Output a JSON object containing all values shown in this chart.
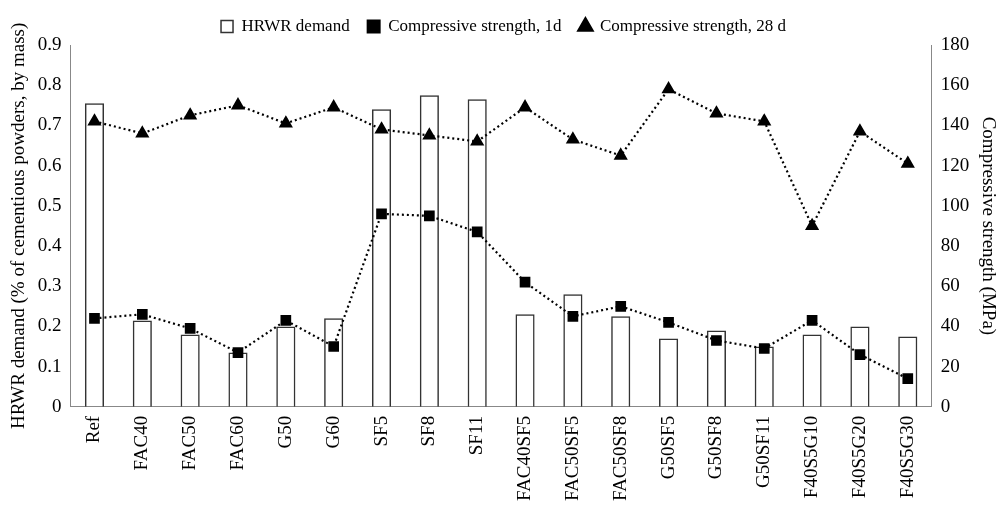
{
  "chart_data": {
    "type": "bar",
    "ylabel": "HRWR demand (% of cementious powders, by mass)",
    "y2label": "Compressive strength (MPa)",
    "categories": [
      "Ref",
      "FAC40",
      "FAC50",
      "FAC60",
      "G50",
      "G60",
      "SF5",
      "SF8",
      "SF11",
      "FAC40SF5",
      "FAC50SF5",
      "FAC50SF8",
      "G50SF5",
      "G50SF8",
      "G50SF11",
      "F40S5G10",
      "F40S5G20",
      "F40S5G30"
    ],
    "series": [
      {
        "name": "HRWR demand",
        "color": "#333333",
        "values": [
          0.755,
          0.215,
          0.18,
          0.135,
          0.2,
          0.22,
          0.74,
          0.775,
          0.765,
          0.23,
          0.28,
          0.225,
          0.17,
          0.19,
          0.15,
          0.18,
          0.2,
          0.175
        ]
      },
      {
        "name": "Compressive strength, 1d",
        "type": "line",
        "axis": "y2",
        "marker": "square",
        "line_style": "dotted",
        "color": "#000000",
        "values": [
          44,
          46,
          39,
          27,
          43,
          30,
          96,
          95,
          87,
          62,
          45,
          50,
          42,
          33,
          29,
          43,
          26,
          14
        ]
      },
      {
        "name": "Compressive strength, 28 d",
        "type": "line",
        "axis": "y2",
        "marker": "triangle",
        "line_style": "dotted",
        "color": "#000000",
        "values": [
          142,
          136,
          145,
          150,
          141,
          149,
          138,
          135,
          132,
          149,
          133,
          125,
          158,
          146,
          142,
          90,
          137,
          121
        ]
      }
    ],
    "ylim": [
      0,
      0.9
    ],
    "yticks": [
      0,
      0.1,
      0.2,
      0.3,
      0.4,
      0.5,
      0.6,
      0.7,
      0.8,
      0.9
    ],
    "y2lim": [
      0,
      180
    ],
    "y2ticks": [
      0,
      20,
      40,
      60,
      80,
      100,
      120,
      140,
      160,
      180
    ],
    "legend": "top",
    "grid": false
  }
}
